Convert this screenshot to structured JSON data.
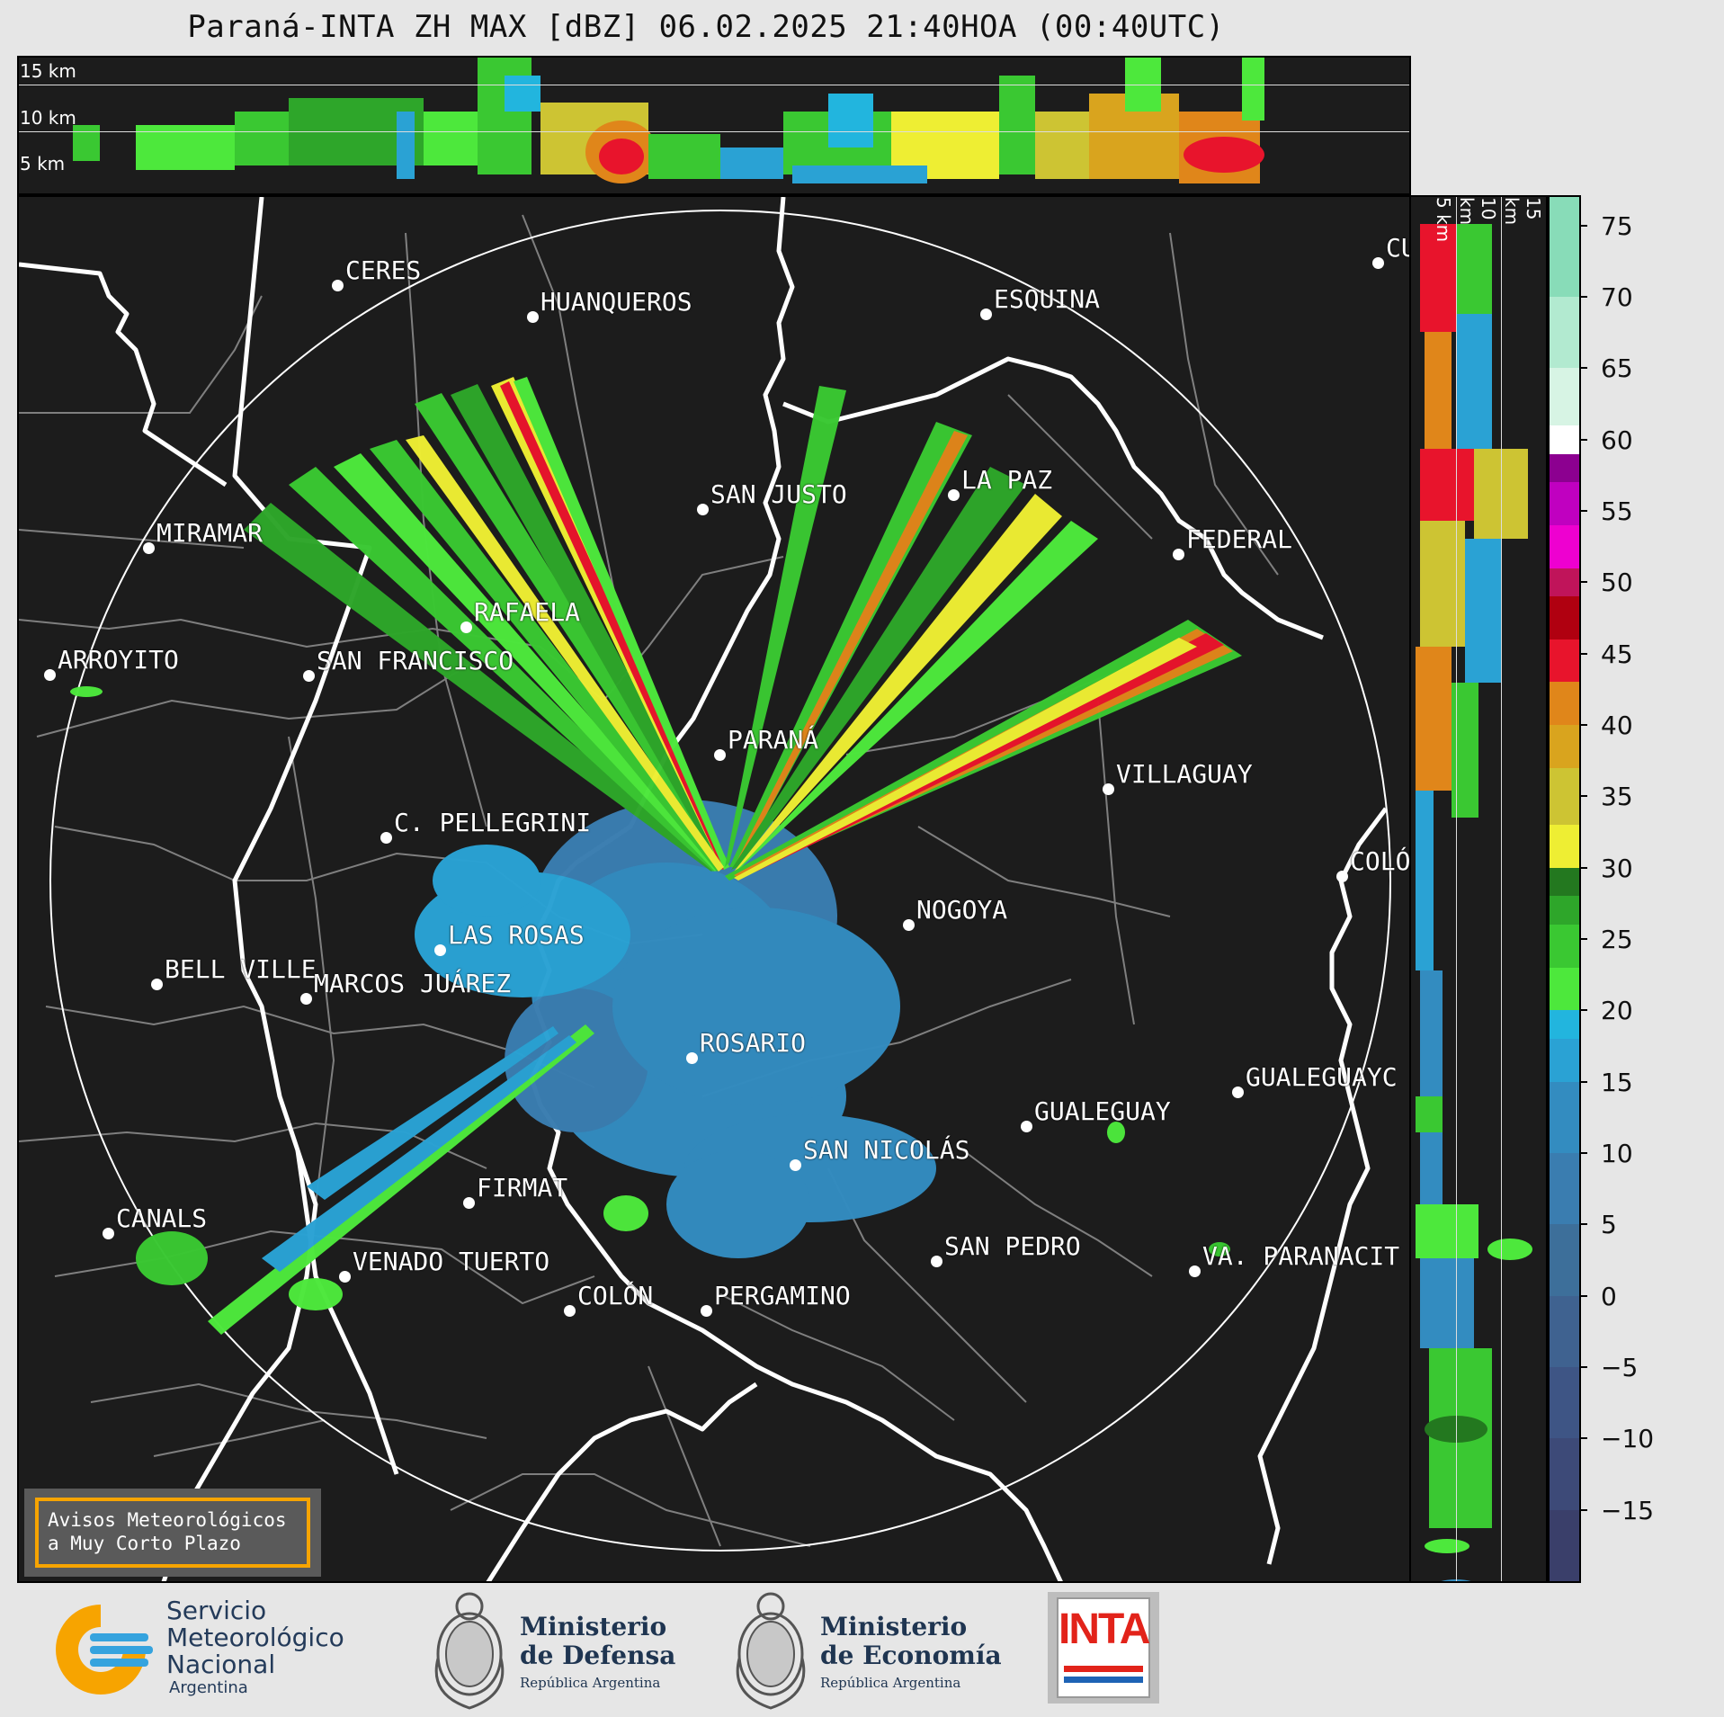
{
  "title": "Paraná-INTA ZH MAX [dBZ] 06.02.2025 21:40HOA (00:40UTC)",
  "top_panel": {
    "altitude_labels": [
      "15 km",
      "10 km",
      "5 km"
    ]
  },
  "side_panel": {
    "altitude_labels": [
      "5 km",
      "10 km",
      "15 km"
    ]
  },
  "colorbar": {
    "unit": "dBZ",
    "range": [
      -20,
      77
    ],
    "ticks": [
      "75",
      "70",
      "65",
      "60",
      "55",
      "50",
      "45",
      "40",
      "35",
      "30",
      "25",
      "20",
      "15",
      "10",
      "5",
      "0",
      "−5",
      "−10",
      "−15"
    ],
    "tick_values": [
      75,
      70,
      65,
      60,
      55,
      50,
      45,
      40,
      35,
      30,
      25,
      20,
      15,
      10,
      5,
      0,
      -5,
      -10,
      -15
    ],
    "bands": [
      {
        "from": -20,
        "to": -15,
        "color": "#3a3f6a"
      },
      {
        "from": -15,
        "to": -10,
        "color": "#3d4a78"
      },
      {
        "from": -10,
        "to": -5,
        "color": "#3e5585"
      },
      {
        "from": -5,
        "to": 0,
        "color": "#3f6290"
      },
      {
        "from": 0,
        "to": 5,
        "color": "#3d6f9a"
      },
      {
        "from": 5,
        "to": 10,
        "color": "#3a7db0"
      },
      {
        "from": 10,
        "to": 15,
        "color": "#338cc0"
      },
      {
        "from": 15,
        "to": 18,
        "color": "#2aa2d4"
      },
      {
        "from": 18,
        "to": 20,
        "color": "#22b5de"
      },
      {
        "from": 20,
        "to": 23,
        "color": "#4de83c"
      },
      {
        "from": 23,
        "to": 26,
        "color": "#3ac832"
      },
      {
        "from": 26,
        "to": 28,
        "color": "#2ea62a"
      },
      {
        "from": 28,
        "to": 30,
        "color": "#23781f"
      },
      {
        "from": 30,
        "to": 33,
        "color": "#eeee33"
      },
      {
        "from": 33,
        "to": 37,
        "color": "#cdc433"
      },
      {
        "from": 37,
        "to": 40,
        "color": "#d9a41e"
      },
      {
        "from": 40,
        "to": 43,
        "color": "#e0861a"
      },
      {
        "from": 43,
        "to": 46,
        "color": "#e8142c"
      },
      {
        "from": 46,
        "to": 49,
        "color": "#b00010"
      },
      {
        "from": 49,
        "to": 51,
        "color": "#c0145a"
      },
      {
        "from": 51,
        "to": 54,
        "color": "#ee00d0"
      },
      {
        "from": 54,
        "to": 57,
        "color": "#c000c0"
      },
      {
        "from": 57,
        "to": 59,
        "color": "#8c0090"
      },
      {
        "from": 59,
        "to": 61,
        "color": "#ffffff"
      },
      {
        "from": 61,
        "to": 65,
        "color": "#d7f4e4"
      },
      {
        "from": 65,
        "to": 70,
        "color": "#b2ead0"
      },
      {
        "from": 70,
        "to": 77,
        "color": "#88dcb8"
      }
    ]
  },
  "map": {
    "colors": {
      "background": "#1c1c1c",
      "border_line": "#ffffff",
      "department_line": "#7f7f7f",
      "range_ring": "#ffffff"
    },
    "cities": [
      {
        "name": "CERES",
        "label": "CERES"
      },
      {
        "name": "HUANQUEROS",
        "label": "HUANQUEROS"
      },
      {
        "name": "ESQUINA",
        "label": "ESQUINA"
      },
      {
        "name": "CURUZU",
        "label": "CU"
      },
      {
        "name": "SAN JUSTO",
        "label": "SAN JUSTO"
      },
      {
        "name": "LA PAZ",
        "label": "LA PAZ"
      },
      {
        "name": "MIRAMAR",
        "label": "MIRAMAR"
      },
      {
        "name": "FEDERAL",
        "label": "FEDERAL"
      },
      {
        "name": "RAFAELA",
        "label": "RAFAELA"
      },
      {
        "name": "ARROYITO",
        "label": "ARROYITO"
      },
      {
        "name": "SAN FRANCISCO",
        "label": "SAN FRANCISCO"
      },
      {
        "name": "PARANA",
        "label": "PARANÁ"
      },
      {
        "name": "VILLAGUAY",
        "label": "VILLAGUAY"
      },
      {
        "name": "C. PELLEGRINI",
        "label": "C. PELLEGRINI"
      },
      {
        "name": "COLON-ER",
        "label": "COLÓ"
      },
      {
        "name": "NOGOYA",
        "label": "NOGOYA"
      },
      {
        "name": "LAS ROSAS",
        "label": "LAS ROSAS"
      },
      {
        "name": "BELL VILLE",
        "label": "BELL VILLE"
      },
      {
        "name": "MARCOS JUAREZ",
        "label": "MARCOS JUÁREZ"
      },
      {
        "name": "ROSARIO",
        "label": "ROSARIO"
      },
      {
        "name": "GUALEGUAYCHU",
        "label": "GUALEGUAYC"
      },
      {
        "name": "GUALEGUAY",
        "label": "GUALEGUAY"
      },
      {
        "name": "SAN NICOLAS",
        "label": "SAN NICOLÁS"
      },
      {
        "name": "FIRMAT",
        "label": "FIRMAT"
      },
      {
        "name": "CANALS",
        "label": "CANALS"
      },
      {
        "name": "SAN PEDRO",
        "label": "SAN PEDRO"
      },
      {
        "name": "VENADO TUERTO",
        "label": "VENADO TUERTO"
      },
      {
        "name": "VILLA PARANACITO",
        "label": "VA. PARANACIT"
      },
      {
        "name": "COLON-BA",
        "label": "COLÓN"
      },
      {
        "name": "PERGAMINO",
        "label": "PERGAMINO"
      }
    ]
  },
  "aviso": {
    "line1": "Avisos Meteorológicos",
    "line2": "a Muy Corto Plazo"
  },
  "logos": {
    "smn": {
      "line1": "Servicio",
      "line2": "Meteorológico",
      "line3": "Nacional",
      "line4": "Argentina",
      "icon": "smn-swirl-icon"
    },
    "defensa": {
      "line1": "Ministerio",
      "line2": "de Defensa",
      "line3": "República Argentina",
      "icon": "national-coat-of-arms-icon"
    },
    "economia": {
      "line1": "Ministerio",
      "line2": "de Economía",
      "line3": "República Argentina",
      "icon": "national-coat-of-arms-icon"
    },
    "inta": {
      "label": "INTA",
      "icon": "inta-logo-icon"
    }
  }
}
